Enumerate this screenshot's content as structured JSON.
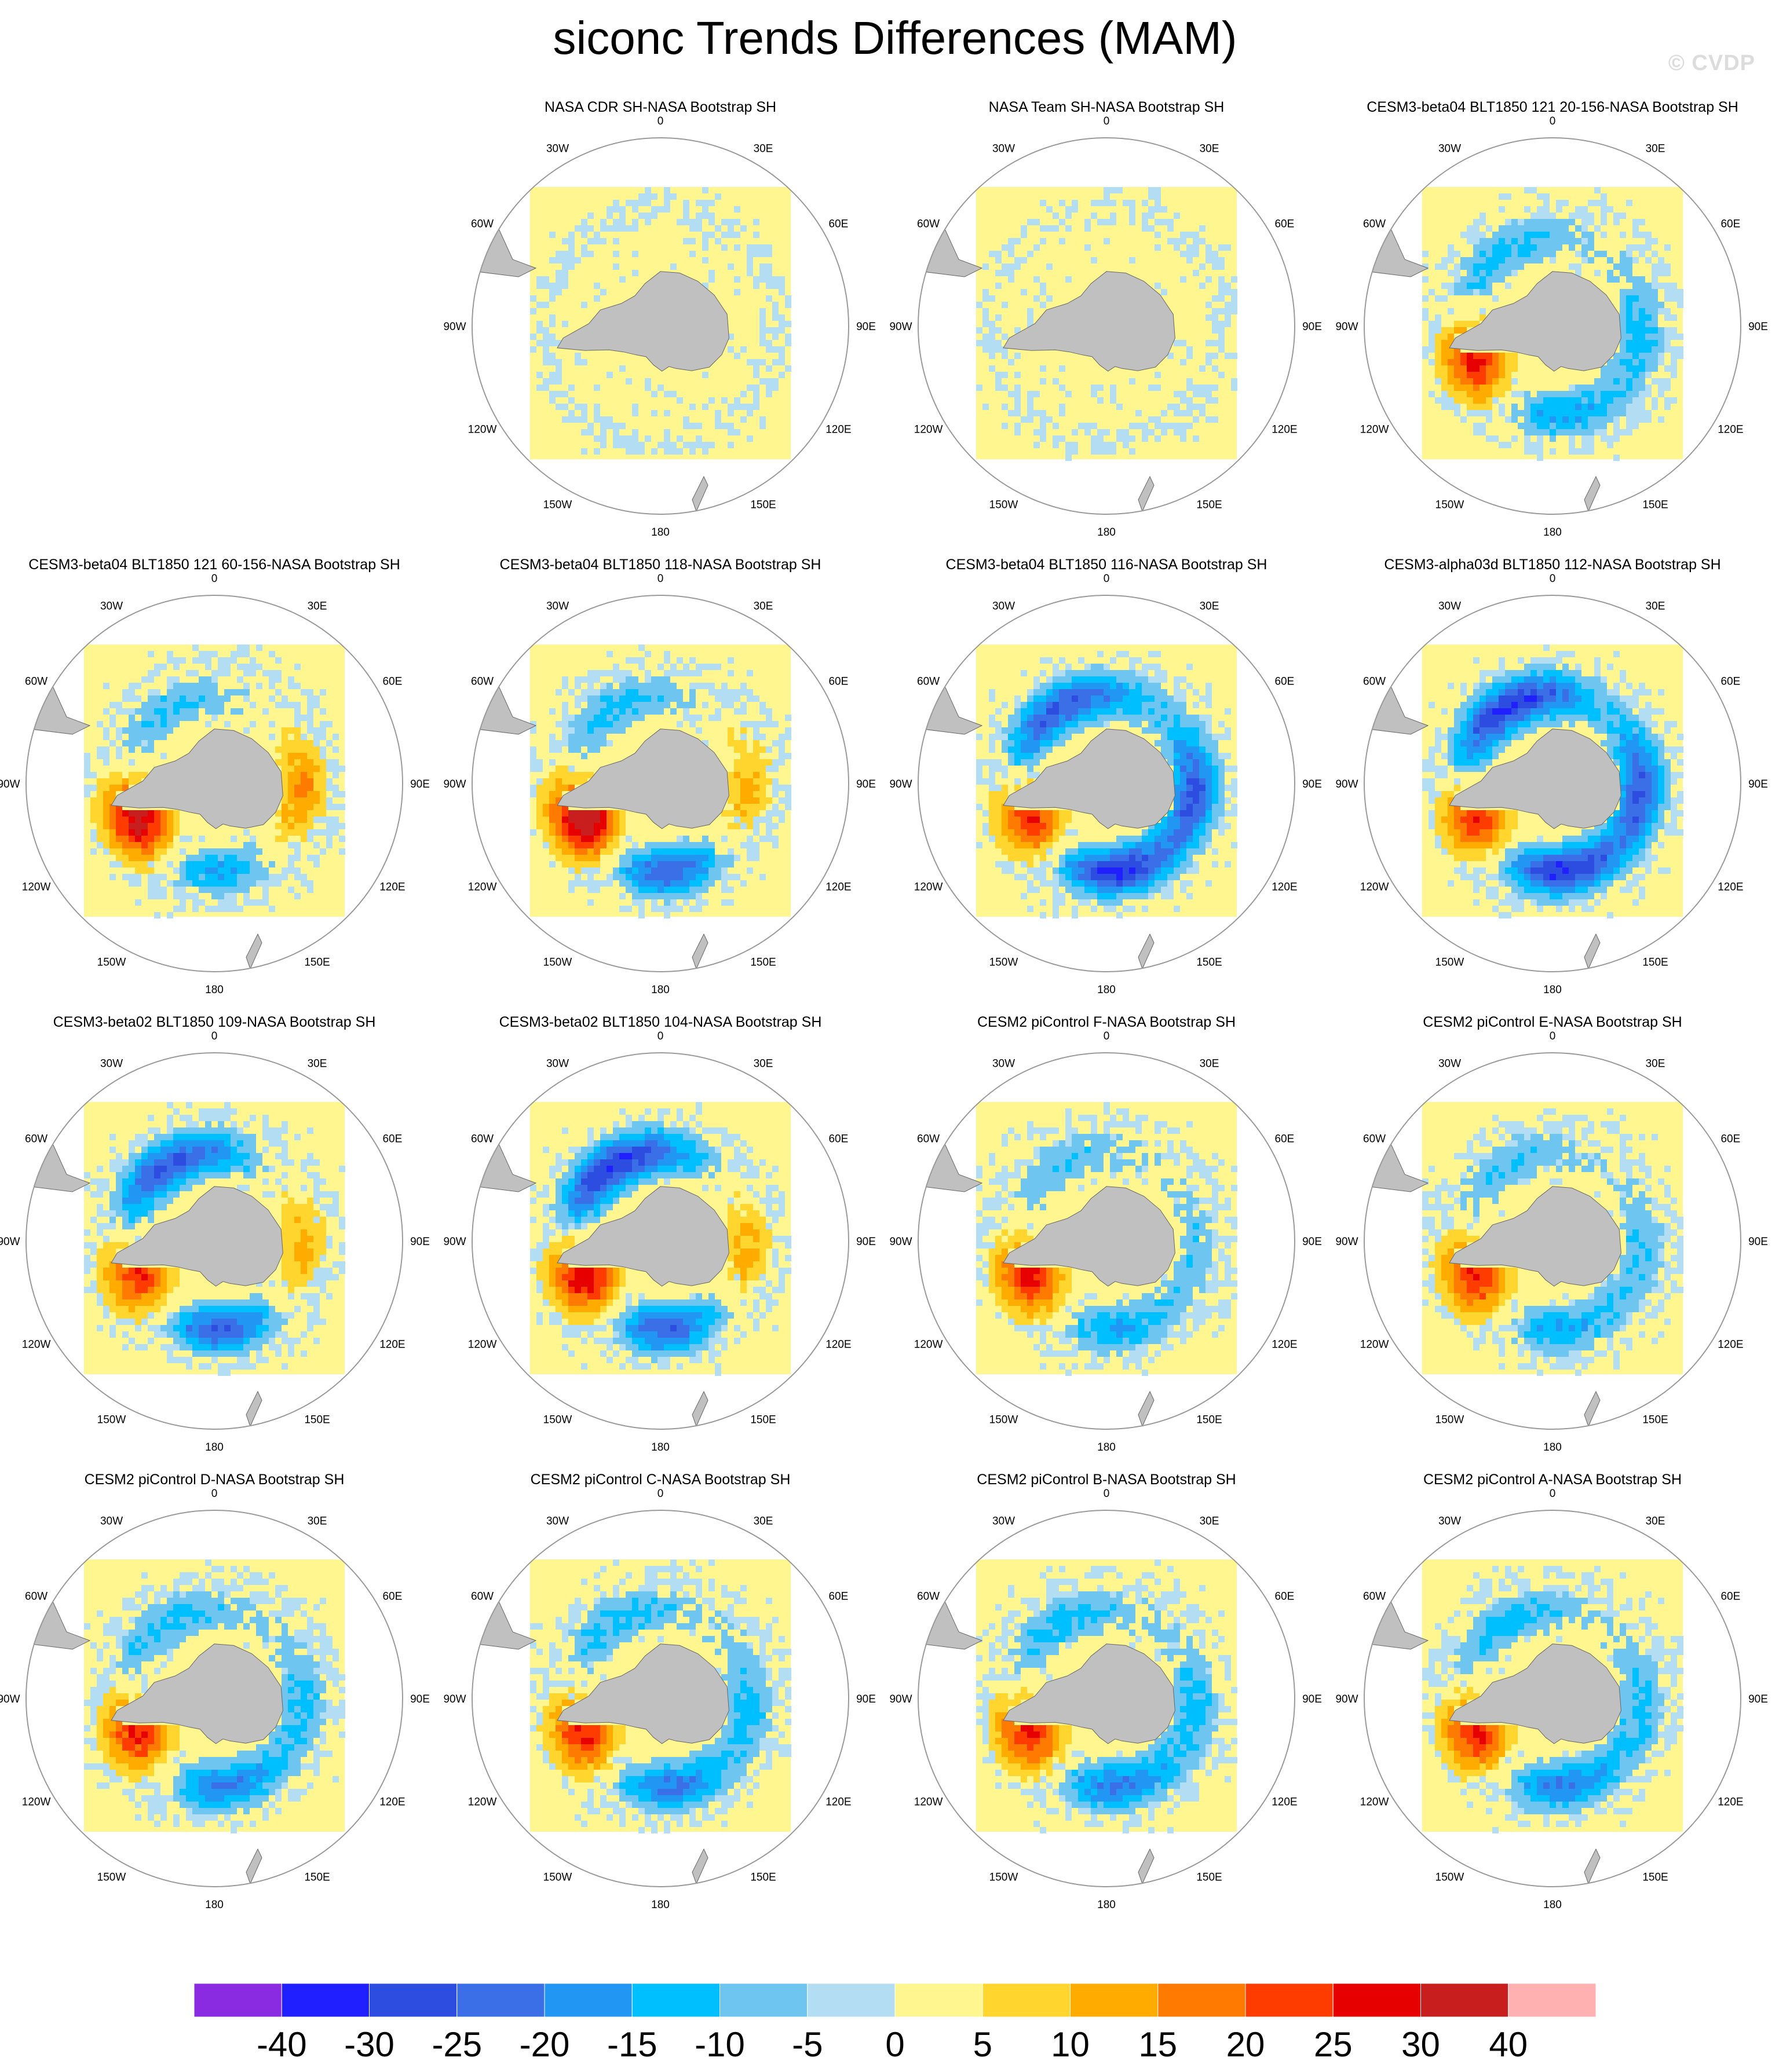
{
  "title": "siconc Trends Differences (MAM)",
  "watermark": "© CVDP",
  "colors": {
    "land": "#c0c0c0",
    "zero_fill": "#fff68f",
    "background": "#ffffff",
    "ring": "#9a9a9a"
  },
  "chart_data": {
    "type": "heatmap",
    "projection": "south-polar-stereographic",
    "grid": {
      "rows": 4,
      "cols": 4,
      "empty_cells": [
        [
          0,
          0
        ]
      ]
    },
    "lon_labels": [
      "0",
      "30E",
      "60E",
      "90E",
      "120E",
      "150E",
      "180",
      "150W",
      "120W",
      "90W",
      "60W",
      "30W"
    ],
    "colorbar": {
      "ticks": [
        "-40",
        "-30",
        "-25",
        "-20",
        "-15",
        "-10",
        "-5",
        "0",
        "5",
        "10",
        "15",
        "20",
        "25",
        "30",
        "40"
      ],
      "colors": [
        "#8a2be2",
        "#1f1fff",
        "#2d4ce0",
        "#3a6fe8",
        "#2196f3",
        "#00bfff",
        "#6ec6f0",
        "#b3ddf2",
        "#fff68f",
        "#ffd52e",
        "#ffab00",
        "#ff7a00",
        "#ff3c00",
        "#e60000",
        "#c81e1e",
        "#ffb0b0"
      ]
    },
    "panels": [
      {
        "title": "NASA CDR SH-NASA Bootstrap SH",
        "anomaly": {
          "weddell": 0,
          "ross": 0,
          "eastAnt": 0,
          "belling": 0
        }
      },
      {
        "title": "NASA Team SH-NASA Bootstrap SH",
        "anomaly": {
          "weddell": 0,
          "ross": 0,
          "eastAnt": 0,
          "belling": 0
        }
      },
      {
        "title": "CESM3-beta04 BLT1850 121 20-156-NASA Bootstrap SH",
        "anomaly": {
          "weddell": -12,
          "ross": -15,
          "eastAnt": -12,
          "belling": 25
        }
      },
      {
        "title": "CESM3-beta04 BLT1850 121 60-156-NASA Bootstrap SH",
        "anomaly": {
          "weddell": -10,
          "ross": -15,
          "eastAnt": 15,
          "belling": 30
        }
      },
      {
        "title": "CESM3-beta04 BLT1850 118-NASA Bootstrap SH",
        "anomaly": {
          "weddell": -12,
          "ross": -25,
          "eastAnt": 12,
          "belling": 35
        }
      },
      {
        "title": "CESM3-beta04 BLT1850 116-NASA Bootstrap SH",
        "anomaly": {
          "weddell": -25,
          "ross": -30,
          "eastAnt": -25,
          "belling": 25
        }
      },
      {
        "title": "CESM3-alpha03d BLT1850 112-NASA Bootstrap SH",
        "anomaly": {
          "weddell": -30,
          "ross": -30,
          "eastAnt": -25,
          "belling": 25
        }
      },
      {
        "title": "CESM3-beta02 BLT1850 109-NASA Bootstrap SH",
        "anomaly": {
          "weddell": -25,
          "ross": -25,
          "eastAnt": 12,
          "belling": 25
        }
      },
      {
        "title": "CESM3-beta02 BLT1850 104-NASA Bootstrap SH",
        "anomaly": {
          "weddell": -30,
          "ross": -25,
          "eastAnt": 12,
          "belling": 30
        }
      },
      {
        "title": "CESM2 piControl F-NASA Bootstrap SH",
        "anomaly": {
          "weddell": -10,
          "ross": -15,
          "eastAnt": -8,
          "belling": 25
        }
      },
      {
        "title": "CESM2 piControl E-NASA Bootstrap SH",
        "anomaly": {
          "weddell": -10,
          "ross": -15,
          "eastAnt": -10,
          "belling": 25
        }
      },
      {
        "title": "CESM2 piControl D-NASA Bootstrap SH",
        "anomaly": {
          "weddell": -12,
          "ross": -20,
          "eastAnt": -12,
          "belling": 25
        }
      },
      {
        "title": "CESM2 piControl C-NASA Bootstrap SH",
        "anomaly": {
          "weddell": -12,
          "ross": -20,
          "eastAnt": -12,
          "belling": 25
        }
      },
      {
        "title": "CESM2 piControl B-NASA Bootstrap SH",
        "anomaly": {
          "weddell": -12,
          "ross": -20,
          "eastAnt": -12,
          "belling": 25
        }
      },
      {
        "title": "CESM2 piControl A-NASA Bootstrap SH",
        "anomaly": {
          "weddell": -12,
          "ross": -20,
          "eastAnt": -12,
          "belling": 25
        }
      }
    ]
  }
}
